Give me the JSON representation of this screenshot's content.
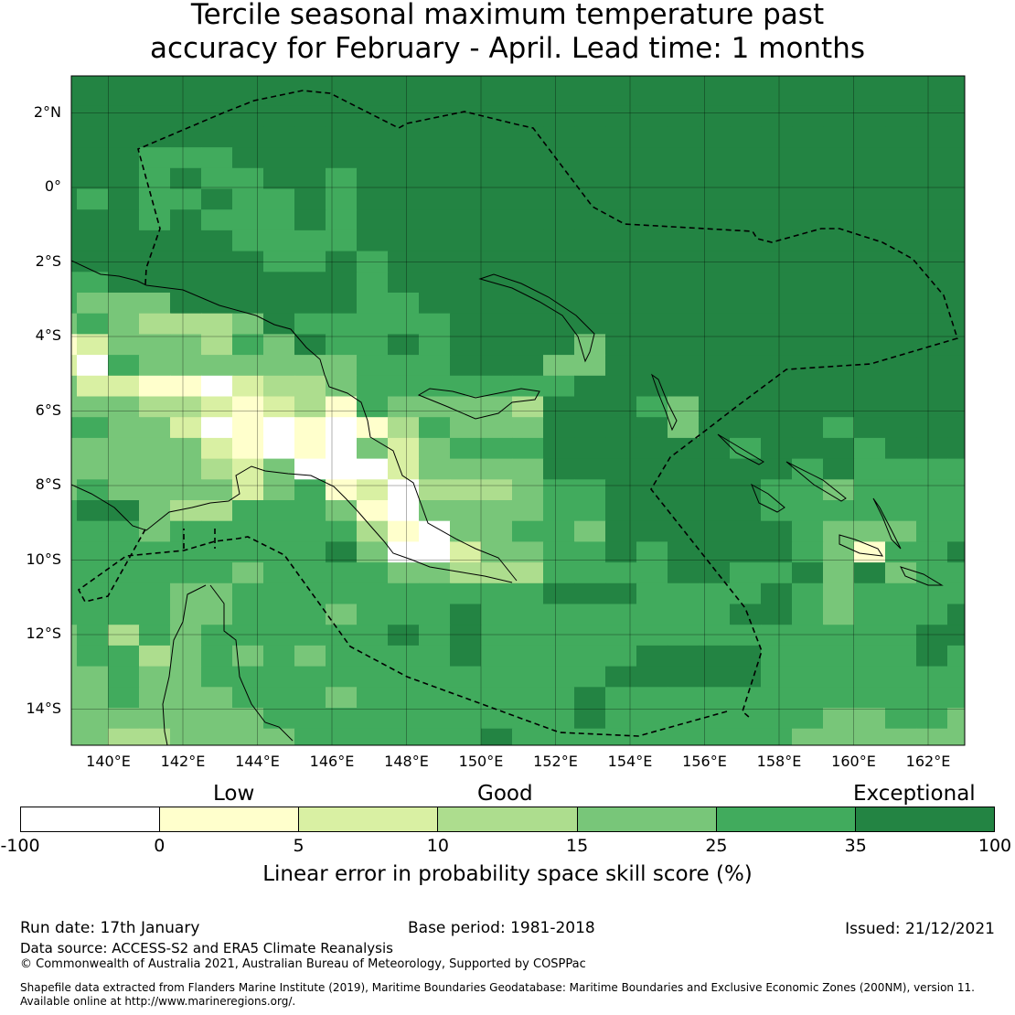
{
  "title_line1": "Tercile seasonal maximum temperature past",
  "title_line2": "accuracy for February - April. Lead time: 1 months",
  "map": {
    "lon_ticks": [
      "140°E",
      "142°E",
      "144°E",
      "146°E",
      "148°E",
      "150°E",
      "152°E",
      "154°E",
      "156°E",
      "158°E",
      "160°E",
      "162°E"
    ],
    "lat_ticks": [
      "2°N",
      "0°",
      "2°S",
      "4°S",
      "6°S",
      "8°S",
      "10°S",
      "12°S",
      "14°S"
    ],
    "palette": [
      "#ffffff",
      "#ffffcc",
      "#d9f0a3",
      "#addd8e",
      "#78c679",
      "#41ab5d",
      "#238443"
    ],
    "grid_levels": [
      "666666666666666666666666666666",
      "666666666666666666666666666666",
      "666666666666666666666666666666",
      "666666666666666666666666666666",
      "666555666666666666666666666666",
      "666565566566666666666666666666",
      "656556556566666666666666666666",
      "666565556566666666666666666666",
      "666666555566666666666666666666",
      "666666655656666666666666666666",
      "556666666656666666666666666666",
      "544466666655666666666666666666",
      "454333465555566666666666666666",
      "124443546556566664666666666666",
      "205444444455566644666666666666",
      "422110233455555556666666666666",
      "444332123154444366654666666666",
      "554420101013544466664666656666",
      "444442101042455566666656665666",
      "444443240002444466666666565555",
      "454444245120333455666665545555",
      "566433555410444455666665555555",
      "555455555531044554666666544455",
      "555555555640024455656666541556",
      "555555455554433355556655646455",
      "555544555555555566655556545555",
      "555544555455565555555566545556",
      "453545555556565555555555555566",
      "455345454555565555566665555565",
      "445445555555555555666665555555",
      "445444555455555556555555555555",
      "444444455555555556555555544554",
      "443344445555556555555555444444"
    ]
  },
  "legend": {
    "categories": [
      "Low",
      "Good",
      "Exceptional"
    ],
    "boundaries": [
      "-100",
      "0",
      "5",
      "10",
      "15",
      "25",
      "35",
      "100"
    ],
    "title": "Linear error in probability space skill score (%)"
  },
  "footer": {
    "run_date": "Run date: 17th January",
    "base_period": "Base period: 1981-2018",
    "issued": "Issued: 21/12/2021",
    "data_source": "Data source: ACCESS-S2 and ERA5 Climate Reanalysis",
    "copyright": "© Commonwealth of Australia 2021, Australian Bureau of Meteorology, Supported by COSPPac",
    "shapefile_line1": "Shapefile data extracted from Flanders Marine Institute (2019), Maritime Boundaries Geodatabase: Maritime Boundaries and Exclusive Economic Zones (200NM), version 11.",
    "shapefile_line2": "Available online at http://www.marineregions.org/."
  }
}
